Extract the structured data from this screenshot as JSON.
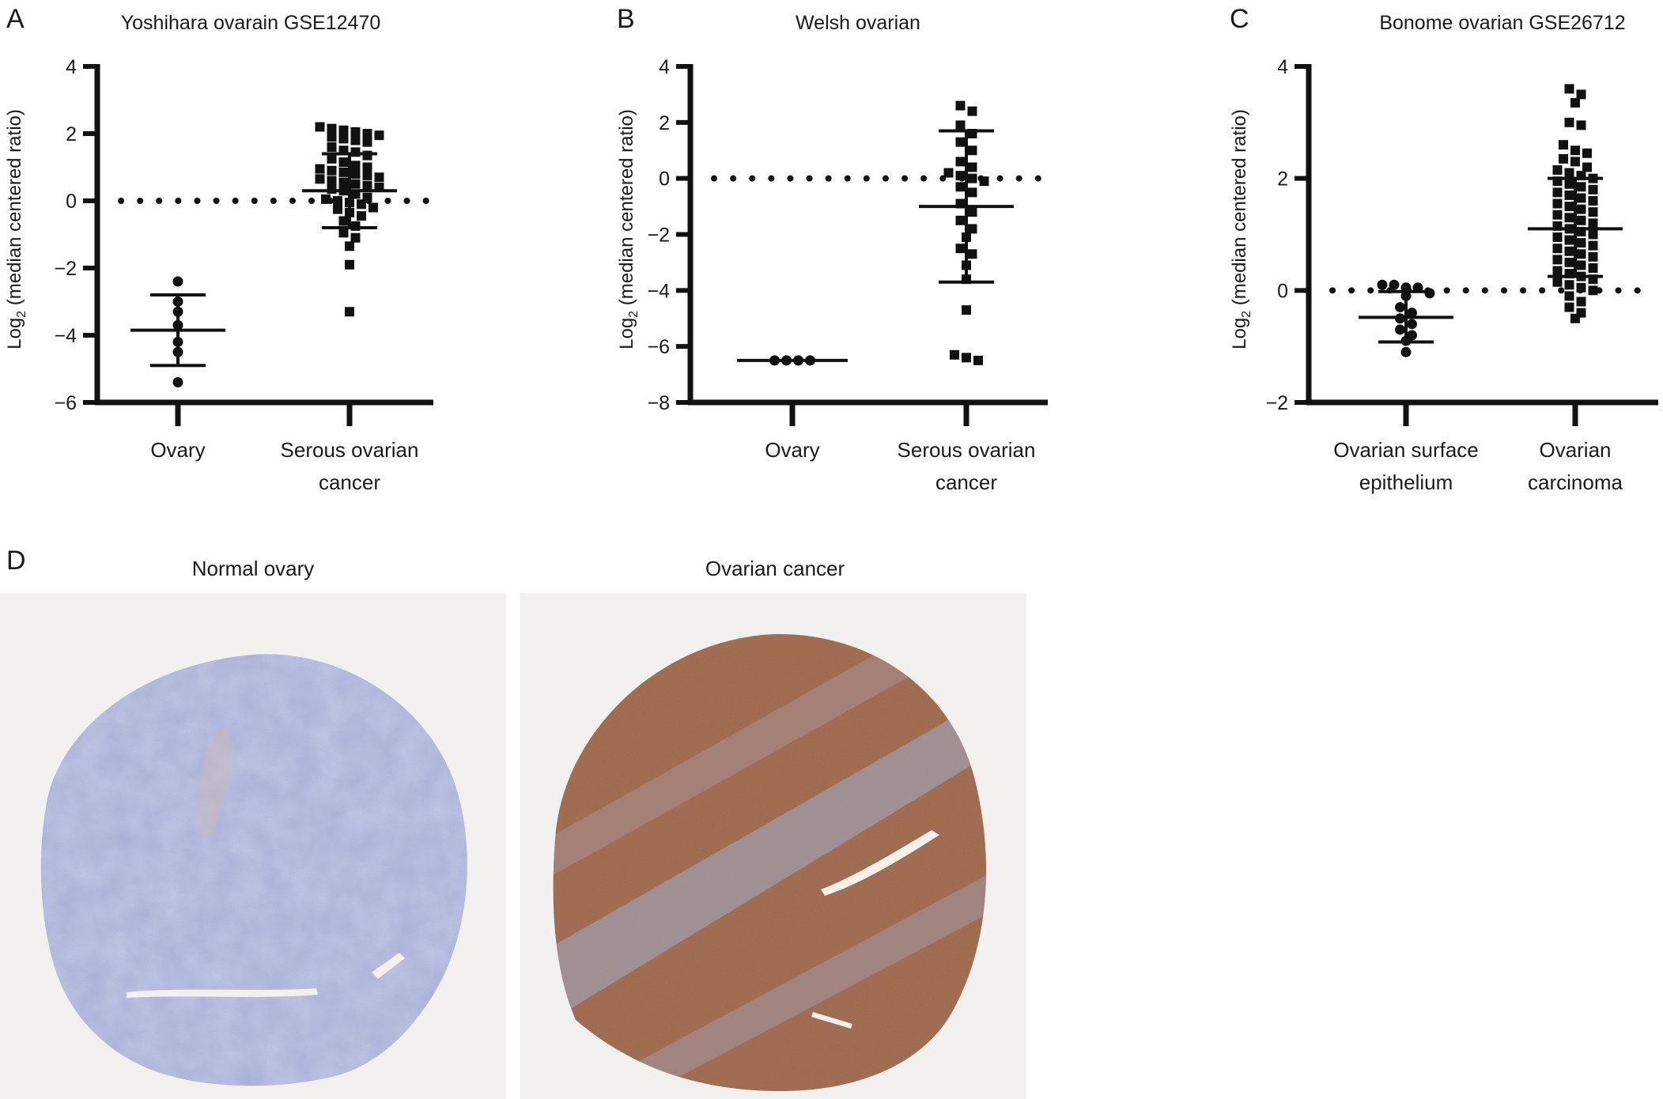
{
  "chart_data": [
    {
      "type": "scatter",
      "panel_label": "A",
      "title": "Yoshihara ovarain GSE12470",
      "ylabel": "Log2 (median centered ratio)",
      "ylabel_main": "Log",
      "ylabel_sub": "2",
      "ylabel_rest": " (median centered ratio)",
      "ylim": [
        -6,
        4
      ],
      "yticks": [
        4,
        2,
        0,
        -2,
        -4,
        -6
      ],
      "reference_line": 0,
      "categories": [
        "Ovary",
        "Serous ovarian cancer"
      ],
      "category_lines": [
        [
          "Ovary"
        ],
        [
          "Serous ovarian",
          "cancer"
        ]
      ],
      "series": [
        {
          "marker": "circle",
          "values": [
            -2.4,
            -3.0,
            -3.3,
            -3.7,
            -4.2,
            -4.5,
            -5.4
          ],
          "mean": -3.85,
          "sd_upper": -2.8,
          "sd_lower": -4.9
        },
        {
          "marker": "square",
          "values": [
            2.2,
            2.15,
            2.1,
            2.05,
            2.0,
            1.95,
            1.9,
            1.85,
            1.8,
            1.75,
            1.6,
            1.5,
            1.45,
            1.35,
            1.25,
            1.15,
            1.05,
            1.0,
            0.95,
            0.9,
            0.85,
            0.8,
            0.75,
            0.7,
            0.65,
            0.6,
            0.55,
            0.5,
            0.45,
            0.4,
            0.35,
            0.3,
            0.2,
            0.1,
            0.05,
            0.0,
            -0.05,
            -0.1,
            -0.2,
            -0.25,
            -0.35,
            -0.45,
            -0.6,
            -0.75,
            -0.95,
            -1.1,
            -1.35,
            -1.9,
            -3.3
          ],
          "mean": 0.3,
          "sd_upper": 1.4,
          "sd_lower": -0.8
        }
      ]
    },
    {
      "type": "scatter",
      "panel_label": "B",
      "title": "Welsh ovarian",
      "ylabel": "Log2 (median centered ratio)",
      "ylabel_main": "Log",
      "ylabel_sub": "2",
      "ylabel_rest": " (median centered ratio)",
      "ylim": [
        -8,
        4
      ],
      "yticks": [
        4,
        2,
        0,
        -2,
        -4,
        -6,
        -8
      ],
      "reference_line": 0,
      "categories": [
        "Ovary",
        "Serous ovarian cancer"
      ],
      "category_lines": [
        [
          "Ovary"
        ],
        [
          "Serous ovarian",
          "cancer"
        ]
      ],
      "series": [
        {
          "marker": "circle",
          "values": [
            -6.5,
            -6.5,
            -6.5,
            -6.5
          ],
          "mean": -6.5,
          "sd_upper": -6.5,
          "sd_lower": -6.5
        },
        {
          "marker": "square",
          "values": [
            2.6,
            2.4,
            1.9,
            1.6,
            1.3,
            1.0,
            0.6,
            0.4,
            0.2,
            0.1,
            0.0,
            -0.1,
            -0.3,
            -0.5,
            -0.9,
            -1.2,
            -1.5,
            -1.8,
            -2.1,
            -2.5,
            -2.7,
            -3.1,
            -3.6,
            -4.7,
            -6.3,
            -6.4,
            -6.5
          ],
          "mean": -1.0,
          "sd_upper": 1.7,
          "sd_lower": -3.7
        }
      ]
    },
    {
      "type": "scatter",
      "panel_label": "C",
      "title": "Bonome ovarian GSE26712",
      "ylabel": "Log2 (median centered ratio)",
      "ylabel_main": "Log",
      "ylabel_sub": "2",
      "ylabel_rest": " (median centered ratio)",
      "ylim": [
        -2,
        4
      ],
      "yticks": [
        4,
        2,
        0,
        -2
      ],
      "reference_line": 0,
      "categories": [
        "Ovarian surface epithelium",
        "Ovarian carcinoma"
      ],
      "category_lines": [
        [
          "Ovarian surface",
          "epithelium"
        ],
        [
          "Ovarian",
          "carcinoma"
        ]
      ],
      "series": [
        {
          "marker": "circle",
          "values": [
            0.1,
            0.1,
            0.05,
            0.05,
            -0.05,
            -0.1,
            -0.3,
            -0.4,
            -0.5,
            -0.6,
            -0.7,
            -0.8,
            -0.9,
            -1.1
          ],
          "mean": -0.48,
          "sd_upper": -0.02,
          "sd_lower": -0.92
        },
        {
          "marker": "square",
          "values": [
            3.6,
            3.5,
            3.35,
            3.0,
            2.95,
            2.6,
            2.5,
            2.45,
            2.35,
            2.3,
            2.2,
            2.15,
            2.1,
            2.05,
            2.0,
            1.95,
            1.9,
            1.85,
            1.8,
            1.75,
            1.7,
            1.65,
            1.6,
            1.55,
            1.5,
            1.45,
            1.4,
            1.35,
            1.3,
            1.25,
            1.2,
            1.15,
            1.1,
            1.05,
            1.0,
            0.95,
            0.9,
            0.85,
            0.8,
            0.75,
            0.7,
            0.65,
            0.6,
            0.55,
            0.5,
            0.45,
            0.4,
            0.35,
            0.3,
            0.25,
            0.2,
            0.15,
            0.1,
            0.05,
            0.0,
            -0.1,
            -0.2,
            -0.3,
            -0.4,
            -0.5
          ],
          "mean": 1.1,
          "sd_upper": 2.0,
          "sd_lower": 0.25
        }
      ]
    }
  ],
  "panel_d": {
    "panel_label": "D",
    "normal_title": "Normal ovary",
    "cancer_title": "Ovarian cancer"
  }
}
